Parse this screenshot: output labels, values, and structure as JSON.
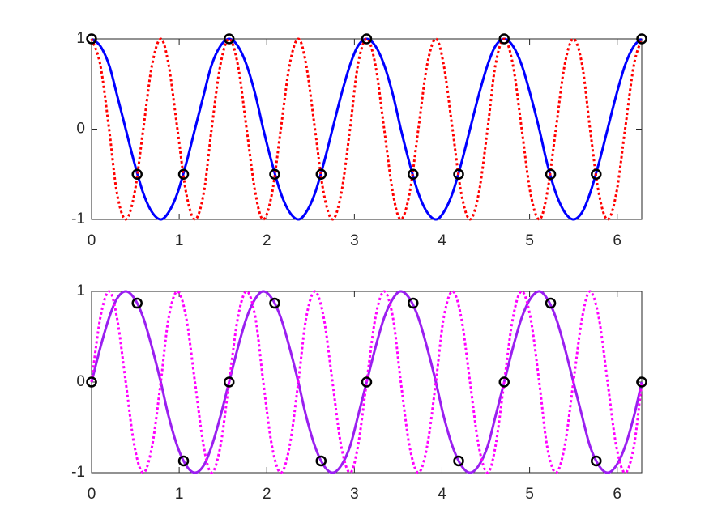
{
  "chart_data": [
    {
      "type": "line",
      "x": [
        0,
        0.1,
        0.2,
        0.29,
        0.39,
        0.49,
        0.59,
        0.69,
        0.79,
        0.88,
        0.98,
        1.08,
        1.18,
        1.28,
        1.37,
        1.47,
        1.57,
        1.67,
        1.77,
        1.87,
        1.96,
        2.06,
        2.16,
        2.26,
        2.36,
        2.45,
        2.55,
        2.65,
        2.75,
        2.85,
        2.95,
        3.04,
        3.14,
        3.24,
        3.34,
        3.44,
        3.53,
        3.63,
        3.73,
        3.83,
        3.93,
        4.02,
        4.12,
        4.22,
        4.32,
        4.42,
        4.52,
        4.61,
        4.71,
        4.81,
        4.91,
        5.01,
        5.11,
        5.2,
        5.3,
        5.4,
        5.5,
        5.6,
        5.69,
        5.79,
        5.89,
        5.99,
        6.09,
        6.19,
        6.28
      ],
      "series": [
        {
          "color": "#0000ff",
          "style": "solid",
          "values": [
            1,
            0.92,
            0.71,
            0.38,
            0,
            -0.38,
            -0.71,
            -0.92,
            -1,
            -0.92,
            -0.71,
            -0.38,
            0,
            0.38,
            0.71,
            0.92,
            1,
            0.92,
            0.71,
            0.38,
            0,
            -0.38,
            -0.71,
            -0.92,
            -1,
            -0.92,
            -0.71,
            -0.38,
            0,
            0.38,
            0.71,
            0.92,
            1,
            0.92,
            0.71,
            0.38,
            0,
            -0.38,
            -0.71,
            -0.92,
            -1,
            -0.92,
            -0.71,
            -0.38,
            0,
            0.38,
            0.71,
            0.92,
            1,
            0.92,
            0.71,
            0.38,
            0,
            -0.38,
            -0.71,
            -0.92,
            -1,
            -0.92,
            -0.71,
            -0.38,
            0,
            0.38,
            0.71,
            0.92,
            1
          ]
        },
        {
          "color": "#ff0000",
          "style": "dotted",
          "values": [
            1,
            0.71,
            0,
            -0.71,
            -1,
            -0.71,
            0,
            0.71,
            1,
            0.71,
            0,
            -0.71,
            -1,
            -0.71,
            0,
            0.71,
            1,
            0.71,
            0,
            -0.71,
            -1,
            -0.71,
            0,
            0.71,
            1,
            0.71,
            0,
            -0.71,
            -1,
            -0.71,
            0,
            0.71,
            1,
            0.71,
            0,
            -0.71,
            -1,
            -0.71,
            0,
            0.71,
            1,
            0.71,
            0,
            -0.71,
            -1,
            -0.71,
            0,
            0.71,
            1,
            0.71,
            0,
            -0.71,
            -1,
            -0.71,
            0,
            0.71,
            1,
            0.71,
            0,
            -0.71,
            -1,
            -0.71,
            0,
            0.71,
            1
          ]
        },
        {
          "color": "#000000",
          "style": "markers",
          "x": [
            0,
            0.52,
            1.05,
            1.57,
            2.09,
            2.62,
            3.14,
            3.67,
            4.19,
            4.71,
            5.24,
            5.76,
            6.28
          ],
          "values": [
            1,
            -0.5,
            -0.5,
            1,
            -0.5,
            -0.5,
            1,
            -0.5,
            -0.5,
            1,
            -0.5,
            -0.5,
            1
          ]
        }
      ],
      "xlim": [
        0,
        6.28
      ],
      "ylim": [
        -1,
        1
      ],
      "xticks": [
        0,
        1,
        2,
        3,
        4,
        5,
        6
      ],
      "yticks": [
        -1,
        0,
        1
      ]
    },
    {
      "type": "line",
      "x": [
        0,
        0.1,
        0.2,
        0.29,
        0.39,
        0.49,
        0.59,
        0.69,
        0.79,
        0.88,
        0.98,
        1.08,
        1.18,
        1.28,
        1.37,
        1.47,
        1.57,
        1.67,
        1.77,
        1.87,
        1.96,
        2.06,
        2.16,
        2.26,
        2.36,
        2.45,
        2.55,
        2.65,
        2.75,
        2.85,
        2.95,
        3.04,
        3.14,
        3.24,
        3.34,
        3.44,
        3.53,
        3.63,
        3.73,
        3.83,
        3.93,
        4.02,
        4.12,
        4.22,
        4.32,
        4.42,
        4.52,
        4.61,
        4.71,
        4.81,
        4.91,
        5.01,
        5.11,
        5.2,
        5.3,
        5.4,
        5.5,
        5.6,
        5.69,
        5.79,
        5.89,
        5.99,
        6.09,
        6.19,
        6.28
      ],
      "series": [
        {
          "color": "#9a1ff0",
          "style": "solid",
          "values": [
            0,
            0.38,
            0.71,
            0.92,
            1,
            0.92,
            0.71,
            0.38,
            0,
            -0.38,
            -0.71,
            -0.92,
            -1,
            -0.92,
            -0.71,
            -0.38,
            0,
            0.38,
            0.71,
            0.92,
            1,
            0.92,
            0.71,
            0.38,
            0,
            -0.38,
            -0.71,
            -0.92,
            -1,
            -0.92,
            -0.71,
            -0.38,
            0,
            0.38,
            0.71,
            0.92,
            1,
            0.92,
            0.71,
            0.38,
            0,
            -0.38,
            -0.71,
            -0.92,
            -1,
            -0.92,
            -0.71,
            -0.38,
            0,
            0.38,
            0.71,
            0.92,
            1,
            0.92,
            0.71,
            0.38,
            0,
            -0.38,
            -0.71,
            -0.92,
            -1,
            -0.92,
            -0.71,
            -0.38,
            0
          ]
        },
        {
          "color": "#ff00ff",
          "style": "dotted",
          "values": [
            0,
            0.71,
            1,
            0.71,
            0,
            -0.71,
            -1,
            -0.71,
            0,
            0.71,
            1,
            0.71,
            0,
            -0.71,
            -1,
            -0.71,
            0,
            0.71,
            1,
            0.71,
            0,
            -0.71,
            -1,
            -0.71,
            0,
            0.71,
            1,
            0.71,
            0,
            -0.71,
            -1,
            -0.71,
            0,
            0.71,
            1,
            0.71,
            0,
            -0.71,
            -1,
            -0.71,
            0,
            0.71,
            1,
            0.71,
            0,
            -0.71,
            -1,
            -0.71,
            0,
            0.71,
            1,
            0.71,
            0,
            -0.71,
            -1,
            -0.71,
            0,
            0.71,
            1,
            0.71,
            0,
            -0.71,
            -1,
            -0.71,
            0
          ]
        },
        {
          "color": "#000000",
          "style": "markers",
          "x": [
            0,
            0.52,
            1.05,
            1.57,
            2.09,
            2.62,
            3.14,
            3.67,
            4.19,
            4.71,
            5.24,
            5.76,
            6.28
          ],
          "values": [
            0,
            0.87,
            -0.87,
            0,
            0.87,
            -0.87,
            0,
            0.87,
            -0.87,
            0,
            0.87,
            -0.87,
            0
          ]
        }
      ],
      "xlim": [
        0,
        6.28
      ],
      "ylim": [
        -1,
        1
      ],
      "xticks": [
        0,
        1,
        2,
        3,
        4,
        5,
        6
      ],
      "yticks": [
        -1,
        0,
        1
      ]
    }
  ]
}
